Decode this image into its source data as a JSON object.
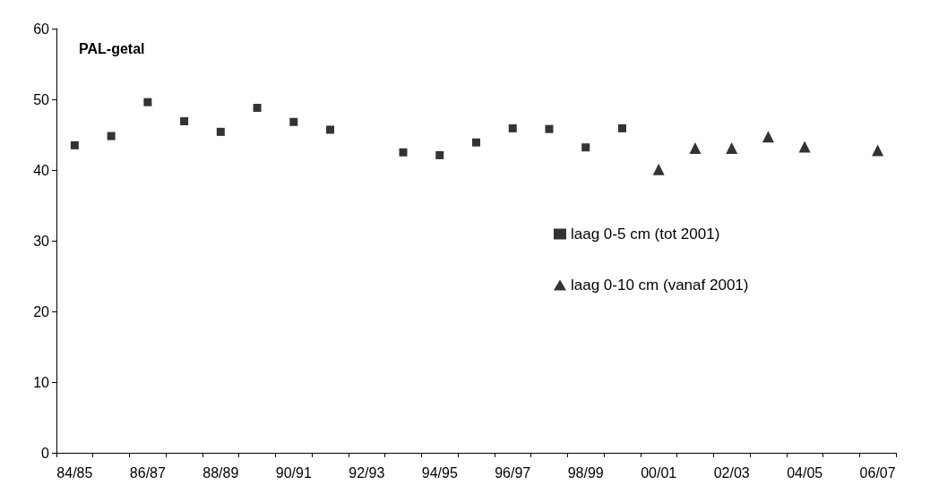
{
  "chart_data": {
    "type": "scatter",
    "ylabel": "PAL-getal",
    "categories": [
      "84/85",
      null,
      "86/87",
      null,
      "88/89",
      null,
      "90/91",
      null,
      "92/93",
      null,
      "94/95",
      null,
      "96/97",
      null,
      "98/99",
      null,
      "00/01",
      null,
      "02/03",
      null,
      "04/05",
      null,
      "06/07"
    ],
    "series": [
      {
        "name": "laag 0-5 cm (tot 2001)",
        "color": "#000000",
        "marker": "square",
        "values": [
          43.5,
          44.8,
          49.6,
          46.9,
          45.4,
          48.8,
          46.8,
          45.7,
          null,
          42.5,
          42.1,
          43.9,
          45.9,
          45.8,
          43.2,
          45.9,
          null,
          null,
          null,
          null,
          null,
          null,
          null
        ]
      },
      {
        "name": "laag 0-10 cm (vanaf 2001)",
        "color": "#000000",
        "marker": "triangle",
        "values": [
          null,
          null,
          null,
          null,
          null,
          null,
          null,
          null,
          null,
          null,
          null,
          null,
          null,
          null,
          null,
          null,
          40.1,
          43.1,
          43.1,
          44.7,
          43.3,
          null,
          42.8
        ]
      }
    ],
    "ylim": [
      0,
      60
    ],
    "yticks": [
      0,
      10,
      20,
      30,
      40,
      50,
      60
    ],
    "grid": false,
    "legend": "right"
  }
}
